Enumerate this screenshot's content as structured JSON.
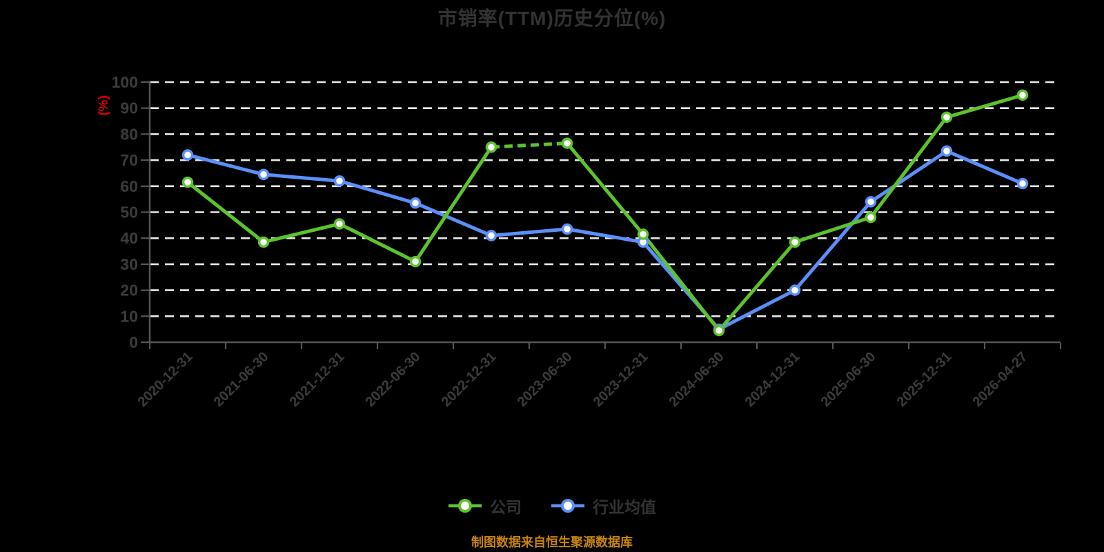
{
  "title": "市销率(TTM)历史分位(%)",
  "footnote": "制图数据来自恒生聚源数据库",
  "colors": {
    "background": "#000000",
    "title_text": "#333333",
    "axis_line": "#565656",
    "tick_text": "#3c3c3c",
    "gridline": "#ebebeb",
    "y_axis_unit_red": "#dd0000",
    "footnote_gold": "#c8860d",
    "legend_text": "#333333",
    "company_green": "#5bc42c",
    "industry_blue": "#5b8ff9"
  },
  "chart_data": {
    "type": "line",
    "title": "市销率(TTM)历史分位(%)",
    "xlabel": "",
    "ylabel": "(%)",
    "ylim": [
      0,
      100
    ],
    "y_ticks": [
      0,
      10,
      20,
      30,
      40,
      50,
      60,
      70,
      80,
      90,
      100
    ],
    "grid": "horizontal-dashed-white",
    "legend_position": "bottom-center",
    "categories": [
      "2020-12-31",
      "2021-06-30",
      "2021-12-31",
      "2022-06-30",
      "2022-12-31",
      "2023-06-30",
      "2023-12-31",
      "2024-06-30",
      "2024-12-31",
      "2025-06-30",
      "2025-12-31",
      "2026-04-27"
    ],
    "series": [
      {
        "name": "公司",
        "color": "#5bc42c",
        "marker": "white-circle",
        "line_style": "solid-with-dashed-span",
        "dashed_between_indices": [
          4,
          5
        ],
        "values": [
          61.5,
          38.5,
          45.5,
          31,
          75,
          76.5,
          41.5,
          4.5,
          38.5,
          48,
          86.5,
          95
        ]
      },
      {
        "name": "行业均值",
        "color": "#5b8ff9",
        "marker": "white-circle",
        "line_style": "solid",
        "values": [
          72,
          64.5,
          62,
          53.5,
          41,
          43.5,
          38.5,
          5,
          20,
          54,
          73.5,
          61
        ]
      }
    ]
  }
}
